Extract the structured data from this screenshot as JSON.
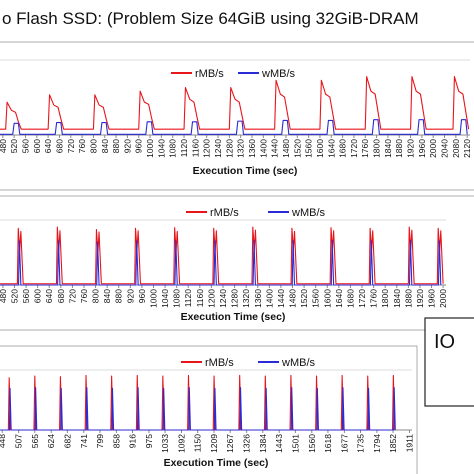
{
  "title": "o Flash SSD:  (Problem Size 64GiB  using 32GiB-DRAM",
  "annotation": "IO",
  "chart_data": [
    {
      "type": "line",
      "x_label": "Execution Time (sec)",
      "xlim": [
        470,
        2130
      ],
      "ylim": [
        0,
        100
      ],
      "xticks": [
        480,
        520,
        560,
        600,
        640,
        680,
        720,
        760,
        800,
        840,
        880,
        920,
        960,
        1000,
        1040,
        1080,
        1120,
        1160,
        1200,
        1240,
        1280,
        1320,
        1360,
        1400,
        1440,
        1480,
        1520,
        1560,
        1600,
        1640,
        1680,
        1720,
        1760,
        1800,
        1840,
        1880,
        1920,
        1960,
        2000,
        2040,
        2080,
        2120
      ],
      "series": [
        {
          "name": "rMB/s",
          "color": "#e8151b",
          "x": [
            470,
            490,
            495,
            510,
            525,
            535,
            545,
            640,
            645,
            660,
            675,
            685,
            695,
            800,
            805,
            820,
            835,
            845,
            855,
            960,
            965,
            980,
            995,
            1005,
            1015,
            1120,
            1125,
            1140,
            1155,
            1165,
            1175,
            1280,
            1285,
            1300,
            1315,
            1325,
            1335,
            1440,
            1445,
            1460,
            1475,
            1485,
            1495,
            1600,
            1605,
            1620,
            1635,
            1645,
            1655,
            1760,
            1765,
            1780,
            1795,
            1805,
            1815,
            1920,
            1925,
            1940,
            1955,
            1965,
            1975,
            2070,
            2075,
            2090,
            2105,
            2115,
            2125
          ],
          "values": [
            8,
            8,
            45,
            34,
            31,
            18,
            8,
            8,
            55,
            41,
            38,
            22,
            8,
            8,
            55,
            41,
            38,
            22,
            8,
            8,
            60,
            45,
            42,
            24,
            8,
            8,
            65,
            49,
            45,
            26,
            8,
            8,
            65,
            49,
            45,
            26,
            8,
            8,
            75,
            56,
            52,
            30,
            8,
            8,
            75,
            56,
            52,
            30,
            8,
            8,
            80,
            60,
            56,
            32,
            8,
            8,
            80,
            60,
            56,
            32,
            8,
            8,
            80,
            60,
            56,
            32,
            8
          ]
        },
        {
          "name": "wMB/s",
          "color": "#2a2ad6",
          "x": [
            470,
            515,
            520,
            535,
            540,
            665,
            670,
            685,
            690,
            825,
            830,
            845,
            850,
            985,
            990,
            1005,
            1010,
            1145,
            1150,
            1165,
            1170,
            1305,
            1310,
            1325,
            1330,
            1465,
            1470,
            1485,
            1490,
            1625,
            1630,
            1645,
            1650,
            1785,
            1790,
            1805,
            1810,
            1945,
            1950,
            1965,
            1970,
            2095,
            2100,
            2115,
            2120
          ],
          "values": [
            1,
            1,
            16,
            16,
            1,
            1,
            17,
            17,
            1,
            1,
            17,
            17,
            1,
            1,
            18,
            18,
            1,
            1,
            18,
            18,
            1,
            1,
            19,
            19,
            1,
            1,
            20,
            20,
            1,
            1,
            20,
            20,
            1,
            1,
            21,
            21,
            1,
            1,
            21,
            21,
            1,
            1,
            21,
            21,
            1
          ]
        }
      ]
    },
    {
      "type": "line",
      "x_label": "Execution Time (sec)",
      "xlim": [
        470,
        2010
      ],
      "ylim": [
        0,
        100
      ],
      "xticks": [
        480,
        520,
        560,
        600,
        640,
        680,
        720,
        760,
        800,
        840,
        880,
        920,
        960,
        1000,
        1040,
        1080,
        1120,
        1160,
        1200,
        1240,
        1280,
        1320,
        1360,
        1400,
        1440,
        1480,
        1520,
        1560,
        1600,
        1640,
        1680,
        1720,
        1760,
        1800,
        1840,
        1880,
        1920,
        1960,
        2000
      ],
      "series": [
        {
          "name": "rMB/s",
          "color": "#e8151b",
          "x": [
            470,
            530,
            533,
            538,
            542,
            550,
            665,
            668,
            673,
            677,
            685,
            800,
            803,
            808,
            812,
            820,
            935,
            938,
            943,
            947,
            955,
            1070,
            1073,
            1078,
            1082,
            1090,
            1205,
            1208,
            1213,
            1217,
            1225,
            1340,
            1343,
            1348,
            1352,
            1360,
            1475,
            1478,
            1483,
            1487,
            1495,
            1610,
            1613,
            1618,
            1622,
            1630,
            1745,
            1748,
            1753,
            1757,
            1765,
            1880,
            1883,
            1888,
            1892,
            1900,
            1980,
            1983,
            1988,
            1992,
            2000
          ],
          "values": [
            2,
            2,
            90,
            55,
            85,
            2,
            2,
            92,
            55,
            86,
            2,
            2,
            88,
            52,
            84,
            2,
            2,
            90,
            56,
            86,
            2,
            2,
            91,
            55,
            85,
            2,
            2,
            90,
            54,
            86,
            2,
            2,
            92,
            56,
            87,
            2,
            2,
            90,
            55,
            85,
            2,
            2,
            91,
            56,
            86,
            2,
            2,
            90,
            55,
            86,
            2,
            2,
            92,
            56,
            87,
            2,
            2,
            90,
            55,
            86,
            2
          ]
        },
        {
          "name": "wMB/s",
          "color": "#2a2ad6",
          "x": [
            470,
            534,
            537,
            542,
            669,
            672,
            677,
            804,
            807,
            812,
            939,
            942,
            947,
            1074,
            1077,
            1082,
            1209,
            1212,
            1217,
            1344,
            1347,
            1352,
            1479,
            1482,
            1487,
            1614,
            1617,
            1622,
            1749,
            1752,
            1757,
            1884,
            1887,
            1892,
            1984,
            1987,
            1992
          ],
          "values": [
            0,
            0,
            70,
            0,
            0,
            70,
            0,
            0,
            68,
            0,
            0,
            70,
            0,
            0,
            70,
            0,
            0,
            70,
            0,
            0,
            71,
            0,
            0,
            70,
            0,
            0,
            71,
            0,
            0,
            70,
            0,
            0,
            71,
            0,
            0,
            70,
            0
          ]
        }
      ]
    },
    {
      "type": "line",
      "x_label": "Execution Time (sec)",
      "xlim": [
        440,
        1920
      ],
      "ylim": [
        0,
        100
      ],
      "xticks": [
        448,
        507,
        565,
        624,
        682,
        741,
        799,
        858,
        916,
        975,
        1033,
        1092,
        1150,
        1209,
        1267,
        1326,
        1384,
        1443,
        1501,
        1560,
        1618,
        1677,
        1735,
        1794,
        1852,
        1911
      ],
      "series": [
        {
          "name": "rMB/s",
          "color": "#e8151b",
          "x": [
            440,
            470,
            473,
            478,
            562,
            565,
            570,
            654,
            657,
            662,
            746,
            749,
            754,
            838,
            841,
            846,
            930,
            933,
            938,
            1022,
            1025,
            1030,
            1114,
            1117,
            1122,
            1206,
            1209,
            1214,
            1298,
            1301,
            1306,
            1390,
            1393,
            1398,
            1482,
            1485,
            1490,
            1574,
            1577,
            1582,
            1666,
            1669,
            1674,
            1758,
            1761,
            1766,
            1850,
            1853,
            1858
          ],
          "values": [
            0,
            0,
            90,
            0,
            0,
            93,
            0,
            0,
            92,
            0,
            0,
            94,
            0,
            0,
            93,
            0,
            0,
            94,
            0,
            0,
            93,
            0,
            0,
            94,
            0,
            0,
            93,
            0,
            0,
            94,
            0,
            0,
            93,
            0,
            0,
            94,
            0,
            0,
            93,
            0,
            0,
            94,
            0,
            0,
            93,
            0,
            0,
            94,
            0
          ]
        },
        {
          "name": "wMB/s",
          "color": "#2a2ad6",
          "x": [
            440,
            474,
            476,
            480,
            566,
            568,
            572,
            658,
            660,
            664,
            750,
            752,
            756,
            842,
            844,
            848,
            934,
            936,
            940,
            1026,
            1028,
            1032,
            1118,
            1120,
            1124,
            1210,
            1212,
            1216,
            1302,
            1304,
            1308,
            1394,
            1396,
            1400,
            1486,
            1488,
            1492,
            1578,
            1580,
            1584,
            1670,
            1672,
            1676,
            1762,
            1764,
            1768,
            1854,
            1856,
            1860
          ],
          "values": [
            0,
            0,
            72,
            0,
            0,
            73,
            0,
            0,
            72,
            0,
            0,
            73,
            0,
            0,
            72,
            0,
            0,
            73,
            0,
            0,
            72,
            0,
            0,
            73,
            0,
            0,
            72,
            0,
            0,
            73,
            0,
            0,
            72,
            0,
            0,
            73,
            0,
            0,
            72,
            0,
            0,
            73,
            0,
            0,
            72,
            0,
            0,
            73,
            0
          ]
        }
      ]
    }
  ]
}
